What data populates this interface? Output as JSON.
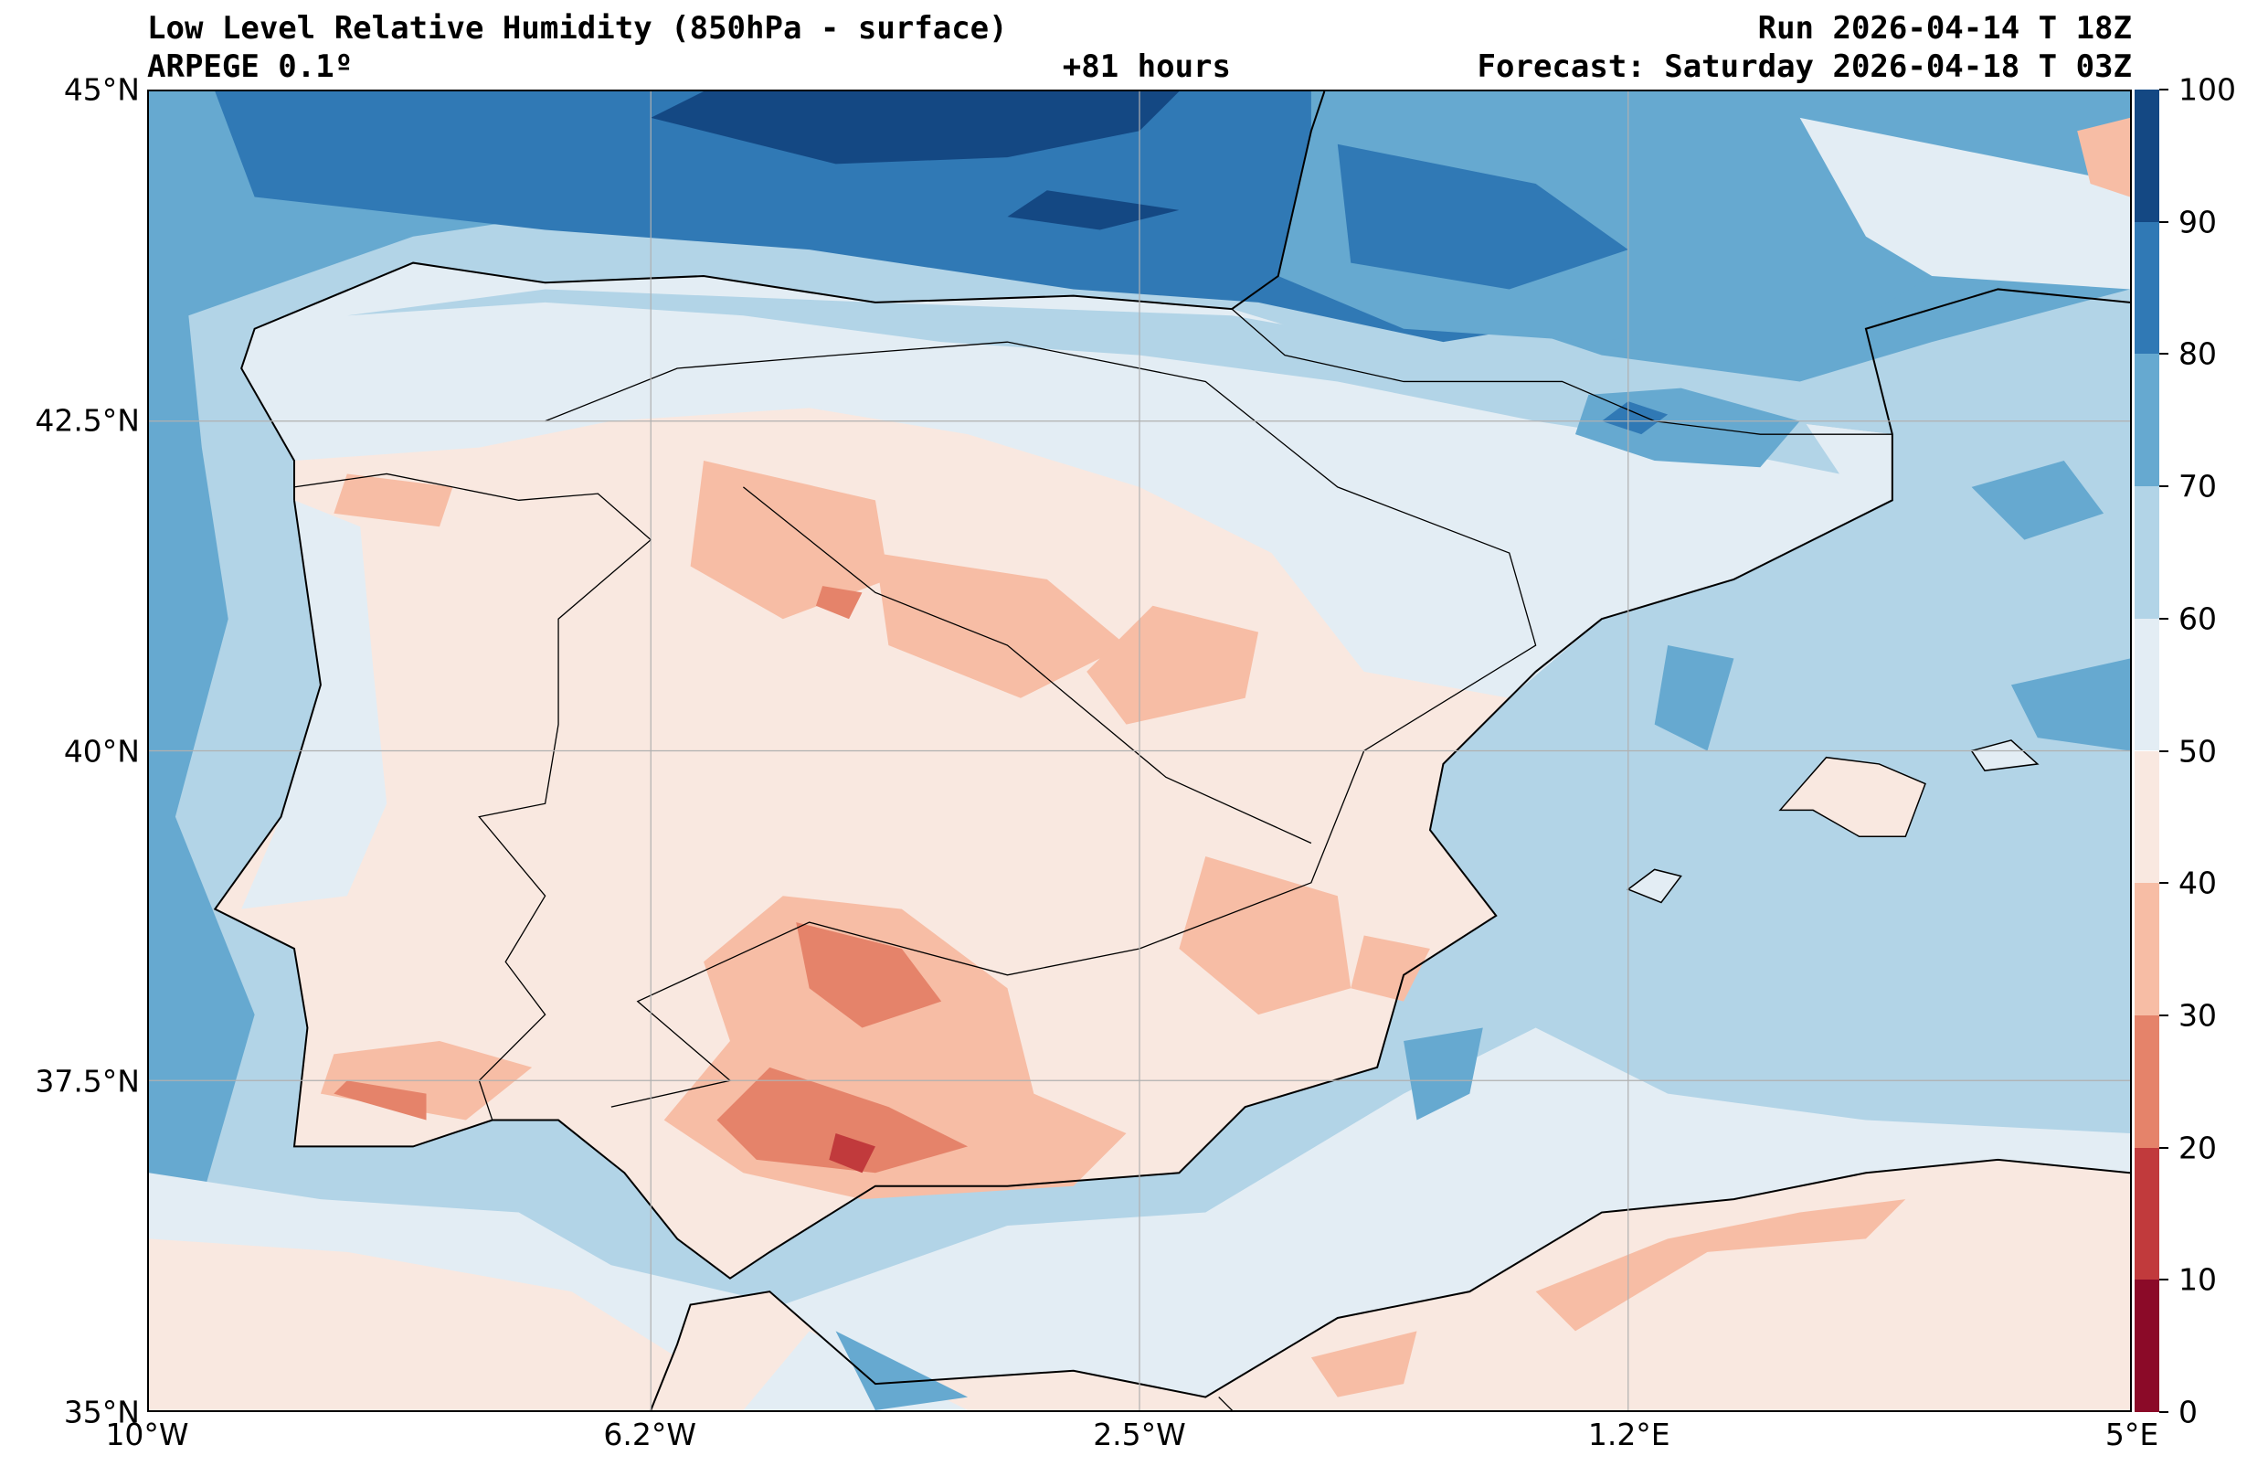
{
  "header": {
    "title": "Low Level Relative Humidity (850hPa - surface)",
    "model": "ARPEGE 0.1º",
    "lead_time": "+81 hours",
    "run": "Run 2026-04-14 T 18Z",
    "forecast": "Forecast: Saturday 2026-04-18 T 03Z"
  },
  "map": {
    "extent_lon": [
      -10,
      5
    ],
    "extent_lat": [
      35,
      45
    ],
    "lat_ticks": [
      {
        "value": 45,
        "label": "45°N"
      },
      {
        "value": 42.5,
        "label": "42.5°N"
      },
      {
        "value": 40,
        "label": "40°N"
      },
      {
        "value": 37.5,
        "label": "37.5°N"
      },
      {
        "value": 35,
        "label": "35°N"
      }
    ],
    "lon_ticks": [
      {
        "value": -10,
        "label": "10°W"
      },
      {
        "value": -6.2,
        "label": "6.2°W"
      },
      {
        "value": -2.5,
        "label": "2.5°W"
      },
      {
        "value": 1.2,
        "label": "1.2°E"
      },
      {
        "value": 5,
        "label": "5°E"
      }
    ]
  },
  "colorbar": {
    "levels": [
      "0",
      "10",
      "20",
      "30",
      "40",
      "50",
      "60",
      "70",
      "80",
      "90",
      "100"
    ],
    "colors": [
      "#8b0a28",
      "#c13a3c",
      "#e5836a",
      "#f7bda5",
      "#f9e8e0",
      "#e3edf4",
      "#b2d4e7",
      "#66a9d0",
      "#3079b5",
      "#144883"
    ]
  }
}
